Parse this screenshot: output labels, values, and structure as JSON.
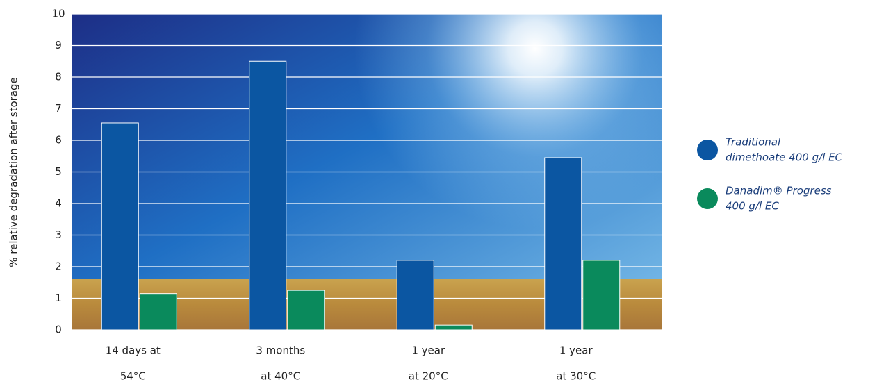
{
  "chart_data": {
    "type": "bar",
    "y_label": "% relative degradation after storage",
    "categories": [
      [
        "14 days at",
        "54°C"
      ],
      [
        "3 months",
        "at 40°C"
      ],
      [
        "1 year",
        "at 20°C"
      ],
      [
        "1 year",
        "at 30°C"
      ]
    ],
    "series": [
      {
        "name": [
          "Traditional",
          "dimethoate 400 g/l EC"
        ],
        "color": "#0b56a2",
        "values": [
          6.55,
          8.5,
          2.2,
          5.45
        ]
      },
      {
        "name": [
          "Danadim® Progress",
          "400 g/l EC"
        ],
        "color": "#0a8a5c",
        "values": [
          1.15,
          1.25,
          0.15,
          2.2
        ]
      }
    ],
    "ylim": [
      0,
      10
    ],
    "yticks": [
      0,
      1,
      2,
      3,
      4,
      5,
      6,
      7,
      8,
      9,
      10
    ],
    "grid": true
  }
}
